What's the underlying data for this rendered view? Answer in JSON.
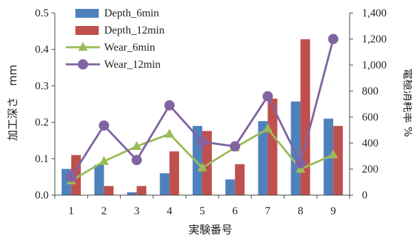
{
  "chart_data": {
    "type": "bar",
    "categories": [
      "1",
      "2",
      "3",
      "4",
      "5",
      "6",
      "7",
      "8",
      "9"
    ],
    "xlabel": "実験番号",
    "ylabel_left": "加工深さ　mm",
    "ylabel_right": "電極消耗率 %",
    "ylim_left": [
      0,
      0.5
    ],
    "ylim_right": [
      0,
      1400
    ],
    "yticks_left": [
      "0.0",
      "0.1",
      "0.2",
      "0.3",
      "0.4",
      "0.5"
    ],
    "yticks_right": [
      "0",
      "200",
      "400",
      "600",
      "800",
      "1,000",
      "1,200",
      "1,400"
    ],
    "grid": false,
    "legend_position": "top-left",
    "series": [
      {
        "name": "Depth_6min",
        "type": "bar",
        "axis": "left",
        "color": "#4F81BD",
        "values": [
          0.072,
          0.083,
          0.008,
          0.06,
          0.19,
          0.043,
          0.203,
          0.257,
          0.21
        ]
      },
      {
        "name": "Depth_12min",
        "type": "bar",
        "axis": "left",
        "color": "#C0504D",
        "values": [
          0.11,
          0.025,
          0.025,
          0.12,
          0.176,
          0.085,
          0.265,
          0.428,
          0.19
        ]
      },
      {
        "name": "Wear_6min",
        "type": "line",
        "axis": "right",
        "color": "#9BBB59",
        "marker": "triangle",
        "values": [
          110,
          260,
          375,
          470,
          210,
          365,
          510,
          200,
          310
        ]
      },
      {
        "name": "Wear_12min",
        "type": "line",
        "axis": "right",
        "color": "#8064A2",
        "marker": "circle",
        "values": [
          140,
          535,
          270,
          690,
          410,
          375,
          760,
          245,
          1200
        ]
      }
    ]
  }
}
